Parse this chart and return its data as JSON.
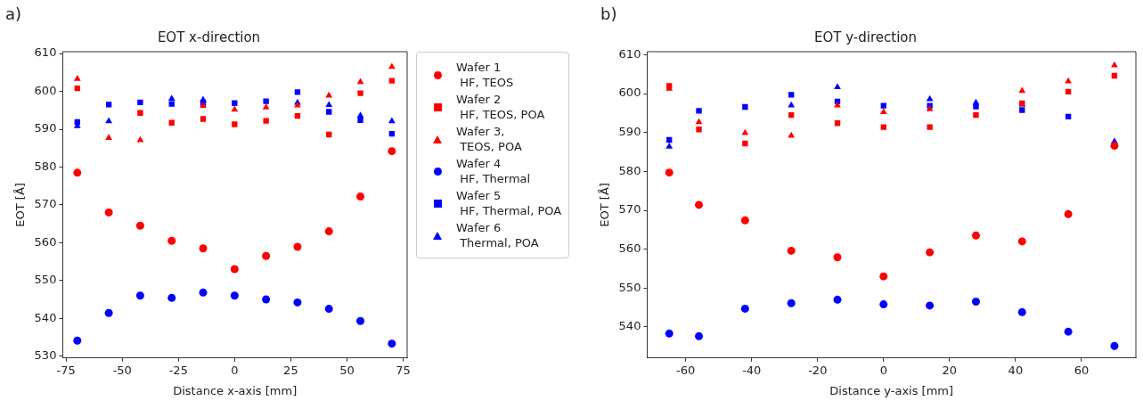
{
  "chart_data": [
    {
      "type": "scatter",
      "title": "EOT x-direction",
      "xlabel": "Distance x-axis [mm]",
      "ylabel": "EOT [Å]",
      "annotations": [
        "a)"
      ],
      "x": [
        -70,
        -56,
        -42,
        -28,
        -14,
        0,
        14,
        28,
        42,
        56,
        70
      ],
      "xlim": [
        -76.5,
        76.8
      ],
      "xticks": [
        -75,
        -50,
        -25,
        0,
        25,
        50,
        75
      ],
      "ylim": [
        529.5,
        610.5
      ],
      "yticks": [
        530,
        540,
        550,
        560,
        570,
        580,
        590,
        600,
        610
      ],
      "grid": false,
      "legend": "right",
      "series": [
        {
          "name": "Wafer 1\n HF, TEOS",
          "color": "#ff0000",
          "marker": "circle",
          "values": [
            578.5,
            568,
            564.5,
            560.5,
            558.5,
            553,
            556.5,
            558.9,
            563,
            572.2,
            584.2
          ]
        },
        {
          "name": "Wafer 2\n HF, TEOS, POA",
          "color": "#ff0000",
          "marker": "square",
          "values": [
            600.8,
            null,
            594.3,
            591.7,
            592.7,
            591.3,
            592.2,
            593.5,
            588.6,
            599.5,
            602.8
          ]
        },
        {
          "name": "Wafer 3,\n TEOS, POA",
          "color": "#ff0000",
          "marker": "triangle",
          "values": [
            603.3,
            587.7,
            587.1,
            null,
            596.2,
            595.2,
            595.8,
            596.3,
            598.9,
            602.5,
            606.5
          ]
        },
        {
          "name": "Wafer 4\n HF, Thermal",
          "color": "#0000ff",
          "marker": "circle",
          "values": [
            534.1,
            541.4,
            546,
            545.4,
            546.8,
            546,
            545,
            544.2,
            542.5,
            539.3,
            533.3
          ]
        },
        {
          "name": "Wafer 5\n HF, Thermal, POA",
          "color": "#0000ff",
          "marker": "square",
          "values": [
            591.9,
            596.5,
            597.1,
            596.7,
            596.9,
            596.9,
            597.4,
            599.8,
            594.6,
            592.4,
            588.8
          ]
        },
        {
          "name": "Wafer 6\n Thermal, POA",
          "color": "#0000ff",
          "marker": "triangle",
          "values": [
            590.8,
            592.1,
            null,
            598.1,
            597.8,
            null,
            null,
            597,
            596.4,
            593.6,
            592.1
          ]
        }
      ]
    },
    {
      "type": "scatter",
      "title": "EOT y-direction",
      "xlabel": "Distance y-axis [mm]",
      "ylabel": "EOT [Å]",
      "annotations": [
        "b)"
      ],
      "x": [
        -65,
        -56,
        -42,
        -28,
        -14,
        0,
        14,
        28,
        42,
        56,
        70
      ],
      "xlim": [
        -71.7,
        76.5
      ],
      "xticks": [
        -60,
        -40,
        -20,
        0,
        20,
        40,
        60
      ],
      "ylim": [
        532,
        610.8
      ],
      "yticks": [
        540,
        550,
        560,
        570,
        580,
        590,
        600,
        610
      ],
      "grid": false,
      "series": [
        {
          "color": "#ff0000",
          "marker": "circle",
          "values": [
            579.7,
            571.4,
            567.4,
            559.6,
            557.9,
            553,
            559.2,
            563.5,
            562,
            569,
            586.6
          ]
        },
        {
          "color": "#ff0000",
          "marker": "square",
          "values": [
            602,
            590.8,
            587.2,
            594.5,
            592.4,
            591.4,
            591.4,
            594.5,
            597.5,
            600.5,
            604.6
          ]
        },
        {
          "color": "#ff0000",
          "marker": "triangle",
          "values": [
            601.3,
            592.7,
            589.9,
            589.2,
            597,
            595.3,
            596,
            null,
            600.7,
            603.2,
            607.3
          ]
        },
        {
          "color": "#0000ff",
          "marker": "circle",
          "values": [
            538.3,
            537.6,
            544.7,
            546.1,
            547,
            545.8,
            545.5,
            546.5,
            543.8,
            538.8,
            535.1
          ]
        },
        {
          "color": "#0000ff",
          "marker": "square",
          "values": [
            588.1,
            595.6,
            596.6,
            599.7,
            598,
            596.9,
            596.9,
            596.7,
            595.8,
            594.1,
            null
          ]
        },
        {
          "color": "#0000ff",
          "marker": "triangle",
          "values": [
            586.4,
            null,
            null,
            597,
            601.7,
            null,
            598.6,
            597.7,
            597.2,
            null,
            587.7
          ]
        }
      ]
    }
  ]
}
